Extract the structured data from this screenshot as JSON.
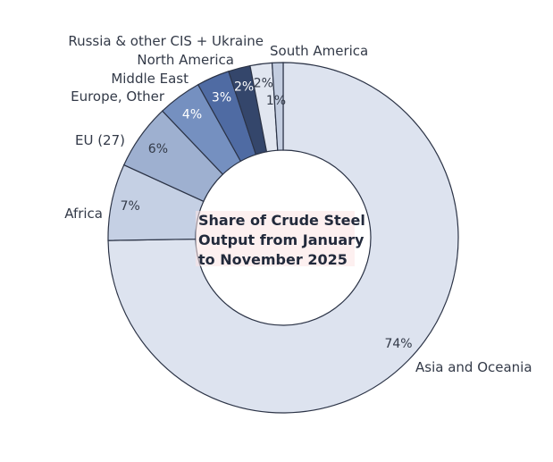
{
  "chart_data": {
    "type": "pie",
    "donut": true,
    "title_lines": [
      "Share of Crude Steel",
      "Output from January",
      "to November 2025"
    ],
    "unit": "%",
    "slices": [
      {
        "label": "Asia and Oceania",
        "value": 74,
        "color": "#dde3ef"
      },
      {
        "label": "Africa",
        "value": 7,
        "color": "#c5d0e4"
      },
      {
        "label": "EU (27)",
        "value": 6,
        "color": "#9eb0d0"
      },
      {
        "label": "Europe, Other",
        "value": 4,
        "color": "#7590c0"
      },
      {
        "label": "Middle East",
        "value": 3,
        "color": "#4f6ba3"
      },
      {
        "label": "North America",
        "value": 2,
        "color": "#34466b"
      },
      {
        "label": "Russia & other CIS + Ukraine",
        "value": 2,
        "color": "#e1e6f0"
      },
      {
        "label": "South America",
        "value": 1,
        "color": "#c3cde0"
      }
    ]
  }
}
